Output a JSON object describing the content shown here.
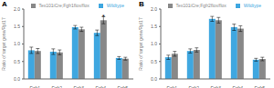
{
  "chart_data": [
    {
      "type": "bar",
      "title": "A",
      "categories": [
        "Fgfr1",
        "Fgfr2",
        "Fgfr3",
        "Fgfr4",
        "Fgfr5"
      ],
      "series": [
        {
          "name": "Wildtype",
          "color": "#3fa7e0",
          "values": [
            0.82,
            0.78,
            1.48,
            1.32,
            0.6
          ],
          "errors": [
            0.09,
            0.08,
            0.05,
            0.08,
            0.04
          ]
        },
        {
          "name": "Tex101iCre;Fgfr1flox/flox",
          "color": "#888888",
          "values": [
            0.8,
            0.76,
            1.42,
            1.68,
            0.58
          ],
          "errors": [
            0.07,
            0.07,
            0.06,
            0.1,
            0.04
          ]
        }
      ],
      "ylabel": "Ratio of target gene/Rpl17",
      "ylim": [
        0,
        2.0
      ],
      "yticks": [
        {
          "value": 0,
          "label": "0.0"
        },
        0.5,
        {
          "value": 1,
          "label": "1.0"
        },
        1.5,
        {
          "value": 2,
          "label": "2.0"
        }
      ],
      "legend": "upper right",
      "grid": false,
      "annotations": [
        {
          "text": "*",
          "category": "Fgfr4",
          "series": "Tex101iCre;Fgfr1flox/flox"
        }
      ]
    },
    {
      "type": "bar",
      "title": "B",
      "categories": [
        "Fgfr1",
        "Fgfr2",
        "Fgfr3",
        "Fgfr4",
        "Fgfr5"
      ],
      "series": [
        {
          "name": "Wildtype",
          "color": "#3fa7e0",
          "values": [
            0.62,
            0.8,
            1.72,
            1.48,
            0.55
          ],
          "errors": [
            0.06,
            0.06,
            0.07,
            0.09,
            0.04
          ]
        },
        {
          "name": "Tex101iCre;Fgfr2flox/flox",
          "color": "#888888",
          "values": [
            0.72,
            0.83,
            1.68,
            1.44,
            0.57
          ],
          "errors": [
            0.07,
            0.06,
            0.08,
            0.08,
            0.05
          ]
        }
      ],
      "ylabel": "Ratio of target gene/Rpl17",
      "ylim": [
        0,
        2.0
      ],
      "yticks": [
        {
          "value": 0,
          "label": "0.0"
        },
        0.5,
        {
          "value": 1,
          "label": "1.0"
        },
        1.5,
        {
          "value": 2,
          "label": "2.0"
        }
      ],
      "legend": "upper right",
      "grid": false
    }
  ]
}
